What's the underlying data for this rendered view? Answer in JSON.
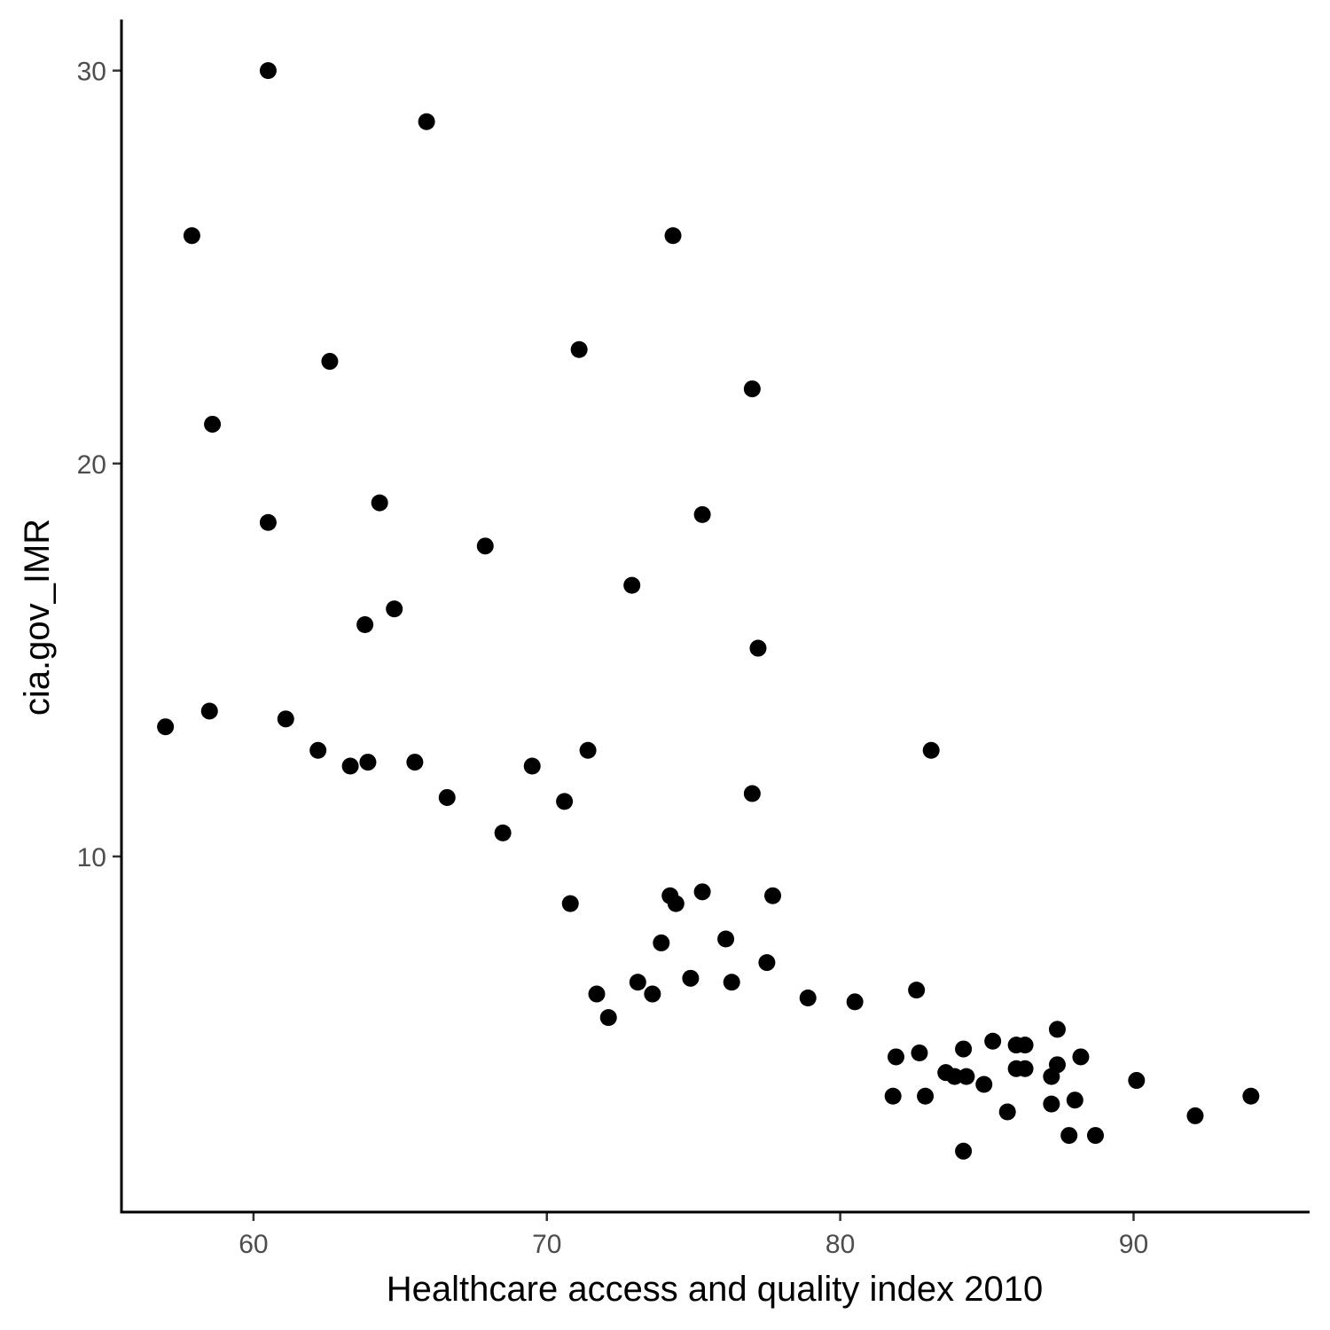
{
  "chart_data": {
    "type": "scatter",
    "title": "",
    "xlabel": "Healthcare access and quality index 2010",
    "ylabel": "cia.gov_IMR",
    "xlim": [
      55.5,
      96
    ],
    "ylim": [
      0.95,
      31.3
    ],
    "x_ticks": [
      60,
      70,
      80,
      90
    ],
    "x_tick_labels": [
      "60",
      "70",
      "80",
      "90"
    ],
    "y_ticks": [
      10,
      20,
      30
    ],
    "y_tick_labels": [
      "10",
      "20",
      "30"
    ],
    "grid": false,
    "legend": "none",
    "point_color": "#000000",
    "points": [
      {
        "x": 60.5,
        "y": 30.0
      },
      {
        "x": 65.9,
        "y": 28.7
      },
      {
        "x": 57.9,
        "y": 25.8
      },
      {
        "x": 74.3,
        "y": 25.8
      },
      {
        "x": 62.6,
        "y": 22.6
      },
      {
        "x": 71.1,
        "y": 22.9
      },
      {
        "x": 77.0,
        "y": 21.9
      },
      {
        "x": 58.6,
        "y": 21.0
      },
      {
        "x": 64.3,
        "y": 19.0
      },
      {
        "x": 60.5,
        "y": 18.5
      },
      {
        "x": 75.3,
        "y": 18.7
      },
      {
        "x": 67.9,
        "y": 17.9
      },
      {
        "x": 72.9,
        "y": 16.9
      },
      {
        "x": 64.8,
        "y": 16.3
      },
      {
        "x": 63.8,
        "y": 15.9
      },
      {
        "x": 77.2,
        "y": 15.3
      },
      {
        "x": 57.0,
        "y": 13.3
      },
      {
        "x": 58.5,
        "y": 13.7
      },
      {
        "x": 61.1,
        "y": 13.5
      },
      {
        "x": 62.2,
        "y": 12.7
      },
      {
        "x": 63.3,
        "y": 12.3
      },
      {
        "x": 63.9,
        "y": 12.4
      },
      {
        "x": 65.5,
        "y": 12.4
      },
      {
        "x": 69.5,
        "y": 12.3
      },
      {
        "x": 71.4,
        "y": 12.7
      },
      {
        "x": 83.1,
        "y": 12.7
      },
      {
        "x": 66.6,
        "y": 11.5
      },
      {
        "x": 70.6,
        "y": 11.4
      },
      {
        "x": 77.0,
        "y": 11.6
      },
      {
        "x": 68.5,
        "y": 10.6
      },
      {
        "x": 74.2,
        "y": 9.0
      },
      {
        "x": 74.4,
        "y": 8.8
      },
      {
        "x": 75.3,
        "y": 9.1
      },
      {
        "x": 77.7,
        "y": 9.0
      },
      {
        "x": 70.8,
        "y": 8.8
      },
      {
        "x": 76.1,
        "y": 7.9
      },
      {
        "x": 73.9,
        "y": 7.8
      },
      {
        "x": 77.5,
        "y": 7.3
      },
      {
        "x": 74.9,
        "y": 6.9
      },
      {
        "x": 76.3,
        "y": 6.8
      },
      {
        "x": 73.1,
        "y": 6.8
      },
      {
        "x": 73.6,
        "y": 6.5
      },
      {
        "x": 71.7,
        "y": 6.5
      },
      {
        "x": 78.9,
        "y": 6.4
      },
      {
        "x": 80.5,
        "y": 6.3
      },
      {
        "x": 82.6,
        "y": 6.6
      },
      {
        "x": 72.1,
        "y": 5.9
      },
      {
        "x": 87.4,
        "y": 5.6
      },
      {
        "x": 85.2,
        "y": 5.3
      },
      {
        "x": 86.0,
        "y": 5.2
      },
      {
        "x": 86.3,
        "y": 5.2
      },
      {
        "x": 84.2,
        "y": 5.1
      },
      {
        "x": 82.7,
        "y": 5.0
      },
      {
        "x": 81.9,
        "y": 4.9
      },
      {
        "x": 88.2,
        "y": 4.9
      },
      {
        "x": 87.4,
        "y": 4.7
      },
      {
        "x": 86.0,
        "y": 4.6
      },
      {
        "x": 86.3,
        "y": 4.6
      },
      {
        "x": 83.6,
        "y": 4.5
      },
      {
        "x": 83.9,
        "y": 4.4
      },
      {
        "x": 84.3,
        "y": 4.4
      },
      {
        "x": 87.2,
        "y": 4.4
      },
      {
        "x": 90.1,
        "y": 4.3
      },
      {
        "x": 84.9,
        "y": 4.2
      },
      {
        "x": 81.8,
        "y": 3.9
      },
      {
        "x": 82.9,
        "y": 3.9
      },
      {
        "x": 94.0,
        "y": 3.9
      },
      {
        "x": 88.0,
        "y": 3.8
      },
      {
        "x": 87.2,
        "y": 3.7
      },
      {
        "x": 85.7,
        "y": 3.5
      },
      {
        "x": 92.1,
        "y": 3.4
      },
      {
        "x": 87.8,
        "y": 2.9
      },
      {
        "x": 88.7,
        "y": 2.9
      },
      {
        "x": 84.2,
        "y": 2.5
      }
    ]
  }
}
